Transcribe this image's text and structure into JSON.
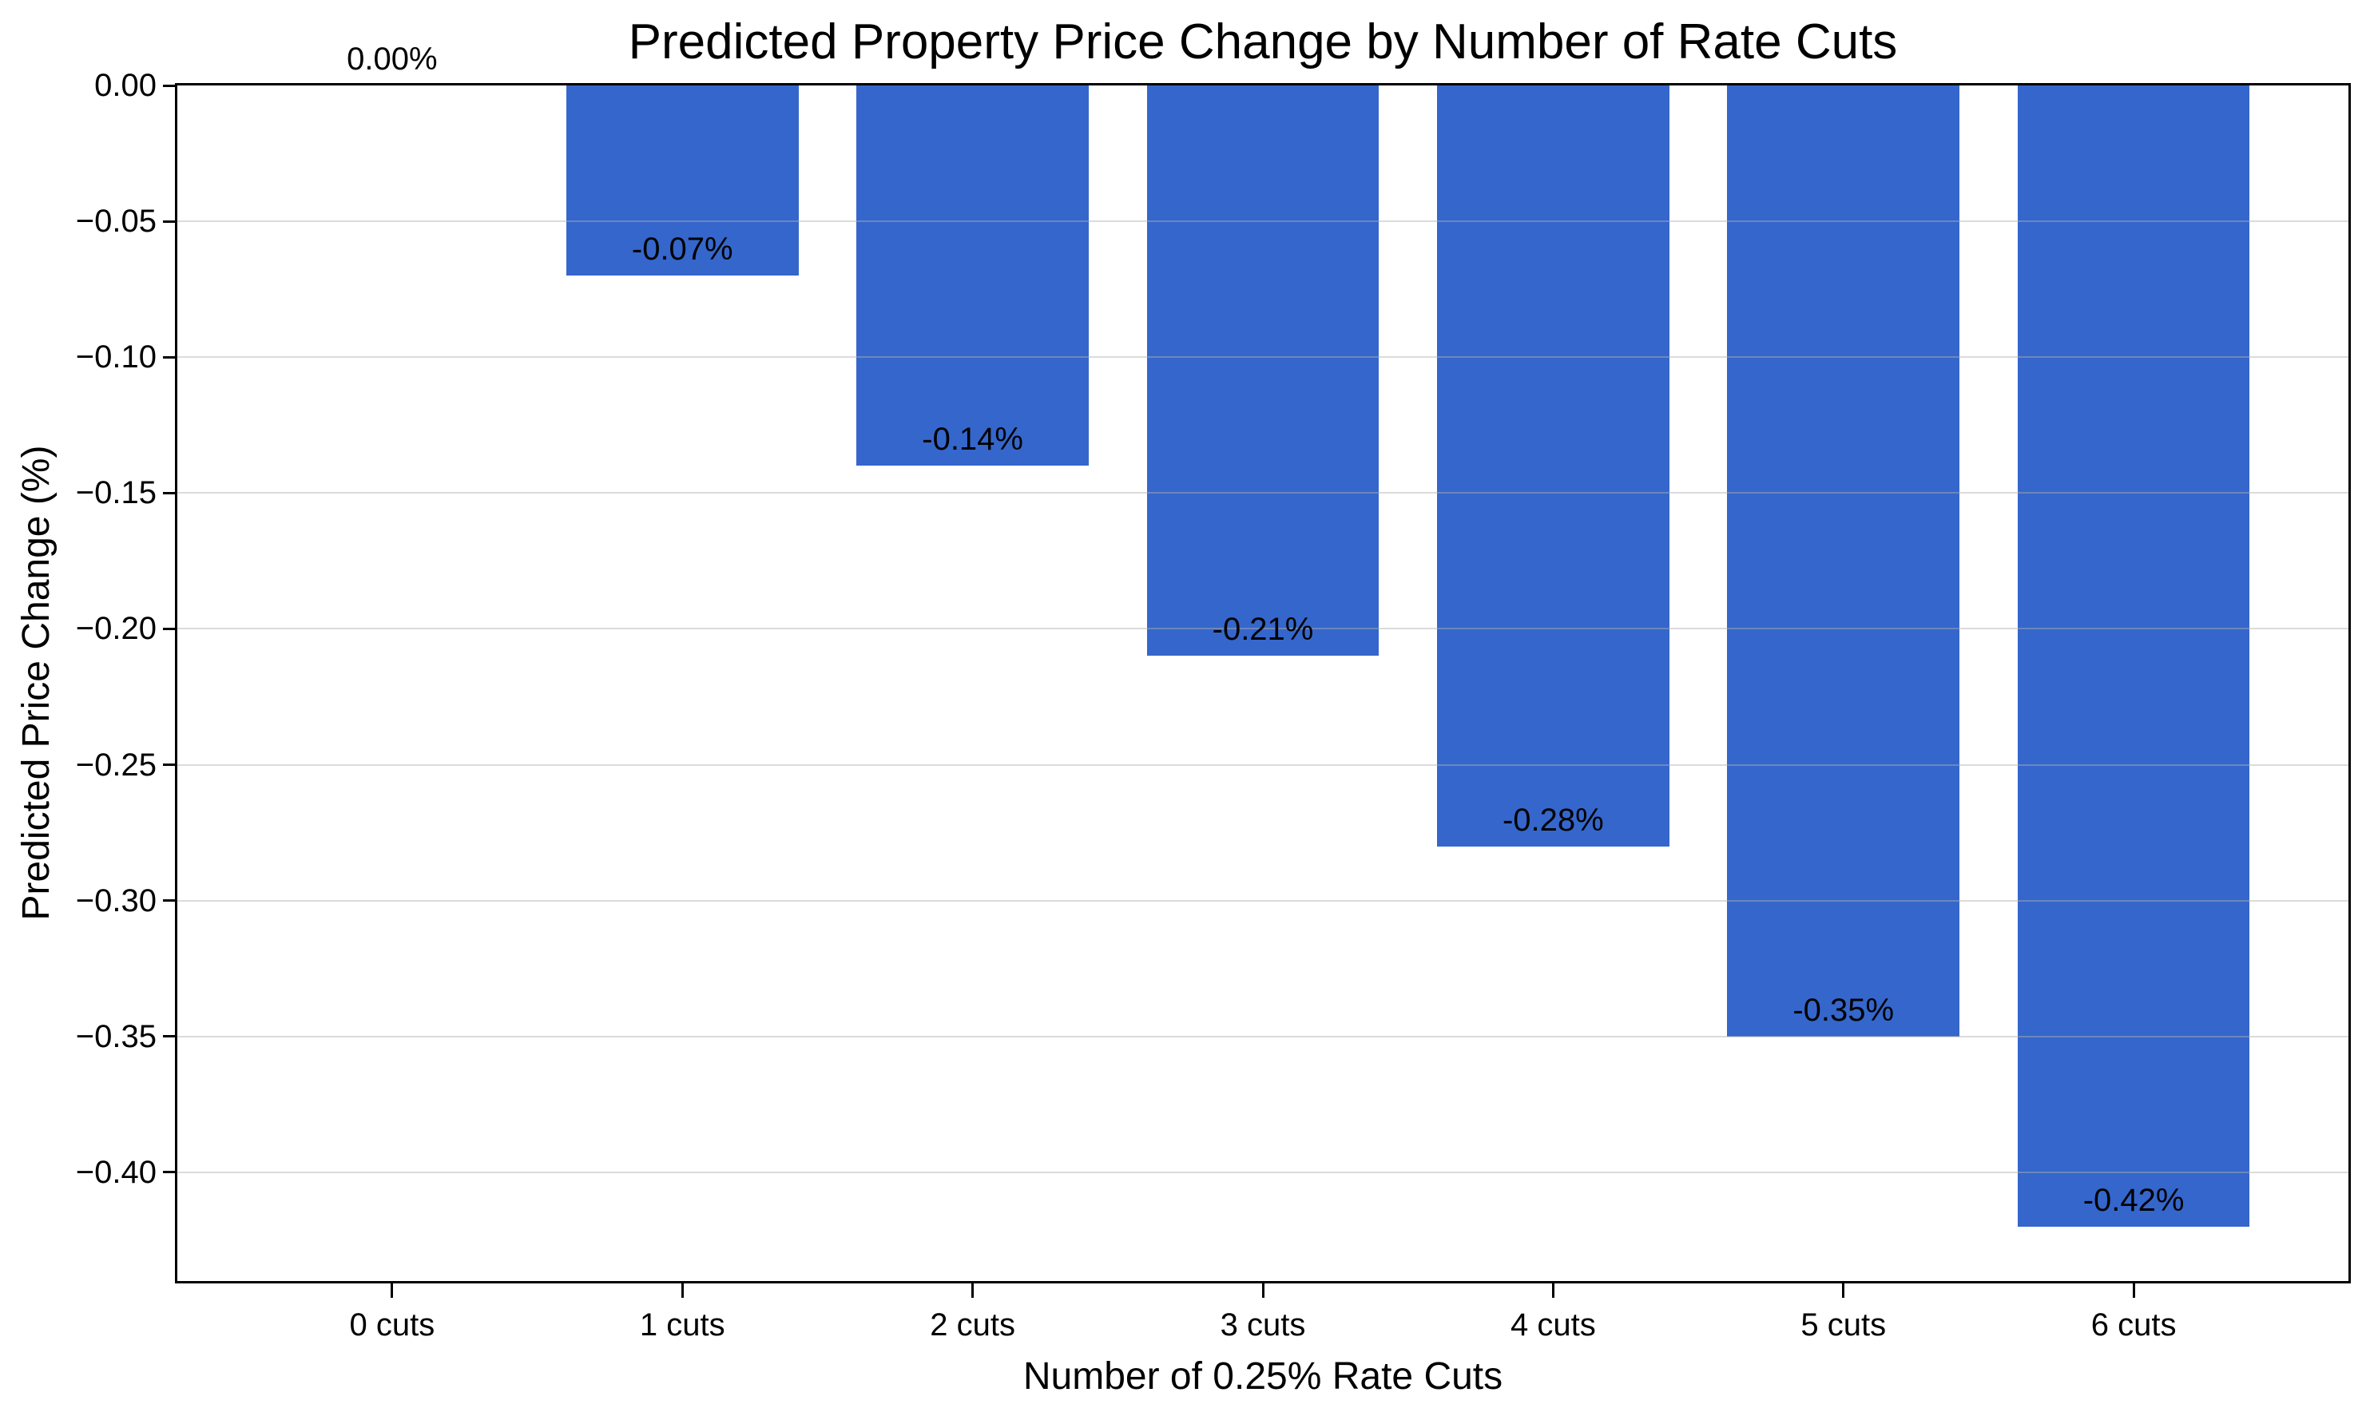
{
  "chart_data": {
    "type": "bar",
    "title": "Predicted Property Price Change by Number of Rate Cuts",
    "xlabel": "Number of 0.25% Rate Cuts",
    "ylabel": "Predicted Price Change (%)",
    "categories": [
      "0 cuts",
      "1 cuts",
      "2 cuts",
      "3 cuts",
      "4 cuts",
      "5 cuts",
      "6 cuts"
    ],
    "values": [
      0.0,
      -0.07,
      -0.14,
      -0.21,
      -0.28,
      -0.35,
      -0.42
    ],
    "bar_labels": [
      "0.00%",
      "-0.07%",
      "-0.14%",
      "-0.21%",
      "-0.28%",
      "-0.35%",
      "-0.42%"
    ],
    "bar_color": "#3566cb",
    "ylim": [
      -0.44,
      0
    ],
    "yticks": [
      0,
      -0.05,
      -0.1,
      -0.15,
      -0.2,
      -0.25,
      -0.3,
      -0.35,
      -0.4
    ],
    "ytick_labels": [
      "0.00",
      "−0.05",
      "−0.10",
      "−0.15",
      "−0.20",
      "−0.25",
      "−0.30",
      "−0.35",
      "−0.40"
    ],
    "grid": "horizontal",
    "grid_color": "#b0b0b0",
    "spine_color": "#000000",
    "text_color": "#000000",
    "background_color": "#ffffff",
    "legend": "none"
  }
}
